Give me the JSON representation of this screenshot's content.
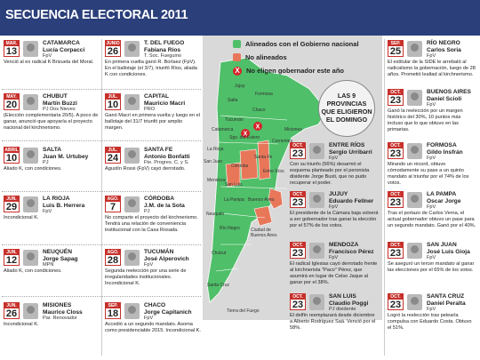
{
  "header": {
    "title": "SECUENCIA ELECTORAL 2011"
  },
  "legend": {
    "aligned": "Alineados con el Gobierno nacional",
    "not_aligned": "No alineados",
    "no_elect": "No eligen gobernador este año",
    "x_mark": "X"
  },
  "bubble": {
    "l1": "LAS 9",
    "l2": "PROVINCIAS",
    "l3": "QUE ELIGIERON",
    "l4": "EL DOMINGO"
  },
  "colors": {
    "header": "#2b3f7a",
    "aligned": "#4fbf69",
    "not_aligned": "#e8775a",
    "no_elect": "#d7232a",
    "calendar": "#c7302b"
  },
  "map_labels": {
    "jujuy": "Jujuy",
    "formosa": "Formosa",
    "salta": "Salta",
    "tucuman": "Tucumán",
    "chaco": "Chaco",
    "catamarca": "Catamarca",
    "sgo": "Sgo. del Estero",
    "misiones": "Misiones",
    "corrientes": "Corrientes",
    "larioja": "La Rioja",
    "sanjuan": "San Juan",
    "cordoba": "Córdoba",
    "santafe": "Santa Fe",
    "entrerios": "Entre Ríos",
    "mendoza": "Mendoza",
    "sanluis": "San Luis",
    "lapampa": "La Pampa",
    "bsas": "Buenos Aires",
    "caba": "Ciudad de Buenos Aires",
    "neuquen": "Neuquén",
    "rionegro": "Río Negro",
    "chubut": "Chubut",
    "santacruz": "Santa Cruz",
    "tdf": "Tierra del Fuego"
  },
  "left": [
    {
      "mon": "MAR.",
      "day": "13",
      "prov": "CATAMARCA",
      "gov": "Lucía Corpacci",
      "party": "FpV",
      "desc": "Venció al ex radical K Brizuela del Moral."
    },
    {
      "mon": "MAY.",
      "day": "20",
      "prov": "CHUBUT",
      "gov": "Martín Buzzi",
      "party": "PJ Dos Nieves",
      "desc": "(Elección complementaria 20/5). A poco de ganar, anunció que apoyaría el proyecto nacional del kirchnerismo."
    },
    {
      "mon": "ABRIL",
      "day": "10",
      "prov": "SALTA",
      "gov": "Juan M. Urtubey",
      "party": "PJ",
      "desc": "Aliado K, con condiciones."
    },
    {
      "mon": "JUN.",
      "day": "29",
      "prov": "LA RIOJA",
      "gov": "Luis B. Herrera",
      "party": "FpV",
      "desc": "Incondicional K."
    },
    {
      "mon": "JUN.",
      "day": "12",
      "prov": "NEUQUÉN",
      "gov": "Jorge Sapag",
      "party": "MPN",
      "desc": "Aliado K, con condiciones."
    },
    {
      "mon": "JUN.",
      "day": "26",
      "prov": "MISIONES",
      "gov": "Maurice Closs",
      "party": "Par. Renovador",
      "desc": "Incondicional K."
    }
  ],
  "mid": [
    {
      "mon": "JUNIO",
      "day": "26",
      "prov": "T. DEL FUEGO",
      "gov": "Fabiana Ríos",
      "party": "T. Soc. Fueguino",
      "desc": "En primera vuelta ganó R. Borlaez (FpV). En el ballotaje (el 3/7), triunfó Ríos, aliada K con condiciones."
    },
    {
      "mon": "JUL.",
      "day": "10",
      "prov": "CAPITAL",
      "gov": "Mauricio Macri",
      "party": "PRO",
      "desc": "Ganó Macri en primera vuelta y luego en el ballotaje del 31/7 triunfó por amplio margen."
    },
    {
      "mon": "JUL.",
      "day": "24",
      "prov": "SANTA FE",
      "gov": "Antonio Bonfatti",
      "party": "Fte. Progres. C. y S.",
      "desc": "Agustín Rossi (FpV) cayó derrotado."
    },
    {
      "mon": "AGO.",
      "day": "7",
      "prov": "CÓRDOBA",
      "gov": "J.M. de la Sota",
      "party": "PJ",
      "desc": "No comparte el proyecto del kirchnerismo. Tendrá una relación de conveniencia institucional con la Casa Rosada."
    },
    {
      "mon": "AGO.",
      "day": "28",
      "prov": "TUCUMÁN",
      "gov": "José Alperovich",
      "party": "FpV",
      "desc": "Segunda reelección por una serie de irregularidades institucionales. Incondicional K."
    },
    {
      "mon": "SEP.",
      "day": "18",
      "prov": "CHACO",
      "gov": "Jorge Capitanich",
      "party": "FpV",
      "desc": "Accedió a un segundo mandato. Asoma como presidenciable 2015. Incondicional K."
    }
  ],
  "right": [
    {
      "mon": "SEP.",
      "day": "25",
      "prov": "RÍO NEGRO",
      "gov": "Carlos Soria",
      "party": "FpV",
      "desc": "El extitular de la SIDE le arrebató al radicalismo la gobernación, luego de 28 años. Prometió lealtad al kirchnerismo."
    },
    {
      "mon": "OCT.",
      "day": "23",
      "prov": "BUENOS AIRES",
      "gov": "Daniel Scioli",
      "party": "FpV",
      "desc": "Ganó la reelección por un margen histórico del 30%, 10 puntos más incluso que lo que obtuvo en las primarias."
    },
    {
      "mon": "OCT.",
      "day": "23",
      "prov": "ENTRE RÍOS",
      "gov": "Sergio Urribarri",
      "party": "FpV",
      "desc": "Con su triunfo (56%) desarmó el esquema planteado por el peronista disidente Jorge Busti, que no pudo recuperar el poder."
    },
    {
      "mon": "OCT.",
      "day": "23",
      "prov": "FORMOSA",
      "gov": "Gildo Insfrán",
      "party": "FpV",
      "desc": "Mirando un récord, obtuvo cómodamente su pase a un quinto mandato al triunfar por el 74% de los votos."
    },
    {
      "mon": "OCT.",
      "day": "23",
      "prov": "JUJUY",
      "gov": "Eduardo Fellner",
      "party": "FpV",
      "desc": "El presidente de la Cámara baja volverá a ser gobernador tras ganar la elección por el 57% de los votos."
    },
    {
      "mon": "OCT.",
      "day": "23",
      "prov": "LA PAMPA",
      "gov": "Oscar Jorge",
      "party": "FpV",
      "desc": "Tras el portazo de Carlos Verna, el actual gobernador obtuvo un pase para un segundo mandato. Ganó por el 40%."
    },
    {
      "mon": "OCT.",
      "day": "23",
      "prov": "MENDOZA",
      "gov": "Francisco Pérez",
      "party": "FpV",
      "desc": "El radical Iglesias cayó derrotado frente al kirchnerista \"Paco\" Pérez, que asumirá en lugar de Celso Jaque al ganar por el 38%."
    },
    {
      "mon": "OCT.",
      "day": "23",
      "prov": "SAN JUAN",
      "gov": "José Luis Gioja",
      "party": "FpV",
      "desc": "Se aseguró un tercer mandato al ganar las elecciones por el 65% de los votos."
    },
    {
      "mon": "OCT.",
      "day": "23",
      "prov": "SAN LUIS",
      "gov": "Claudio Poggi",
      "party": "PJ disidente",
      "desc": "El delfín reemplazará desde diciembre a Alberto Rodríguez Saá. Venció por el 58%."
    },
    {
      "mon": "OCT.",
      "day": "23",
      "prov": "SANTA CRUZ",
      "gov": "Daniel Peralta",
      "party": "FpV",
      "desc": "Logró la reelección tras pelearla compulsa con Eduardo Costa. Obtuvo el 51%."
    }
  ]
}
